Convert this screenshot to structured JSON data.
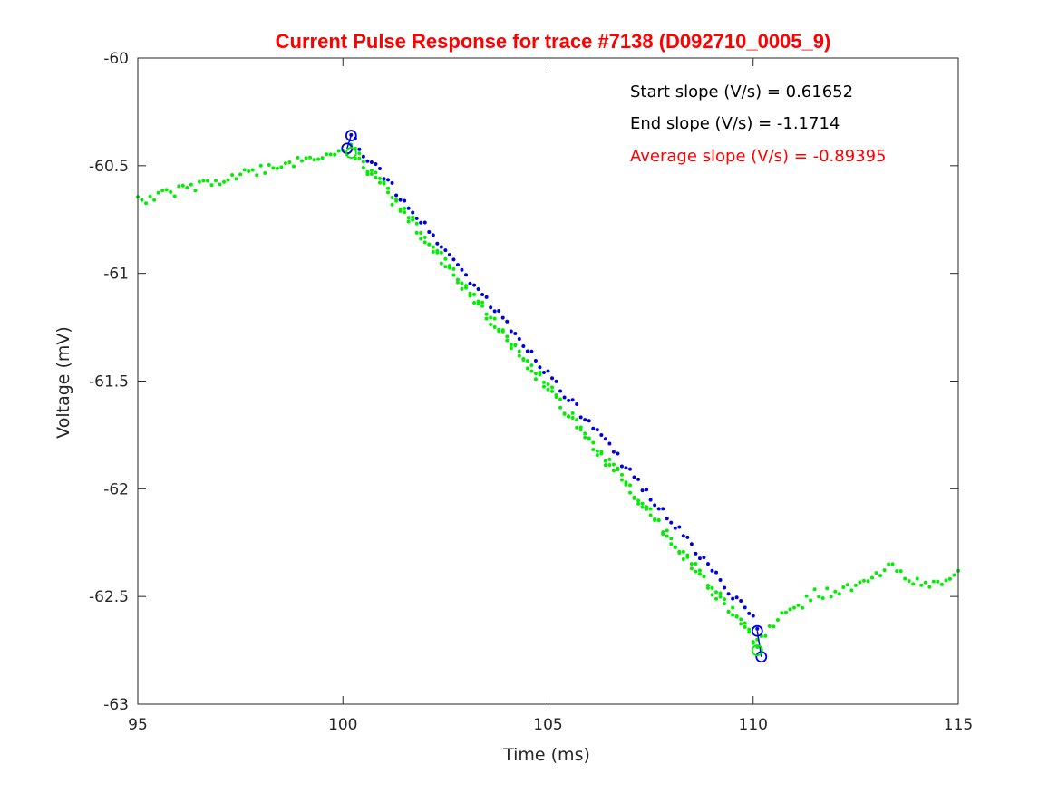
{
  "chart_data": {
    "type": "scatter",
    "title": "Current Pulse Response for trace #7138 (D092710_0005_9)",
    "xlabel": "Time (ms)",
    "ylabel": "Voltage (mV)",
    "xlim": [
      95,
      115
    ],
    "ylim": [
      -63,
      -60
    ],
    "x_ticks": [
      95,
      100,
      105,
      110,
      115
    ],
    "x_tick_labels": [
      "95",
      "100",
      "105",
      "110",
      "115"
    ],
    "y_ticks": [
      -60,
      -60.5,
      -61,
      -61.5,
      -62,
      -62.5,
      -63
    ],
    "y_tick_labels": [
      "-60",
      "-60.5",
      "-61",
      "-61.5",
      "-62",
      "-62.5",
      "-63"
    ],
    "grid": false,
    "annotations": [
      {
        "text": "Start slope (V/s) = 0.61652",
        "color": "#000000"
      },
      {
        "text": "End slope (V/s) = -1.1714",
        "color": "#000000"
      },
      {
        "text": "Average slope (V/s) = -0.89395",
        "color": "#ff0000"
      }
    ],
    "colors": {
      "trace": "#00ee00",
      "fit": "#0000dd",
      "title": "#ff0000"
    },
    "series": [
      {
        "color": "#00ee00",
        "marker": "dot",
        "segments": [
          {
            "x": [
              95,
              99.2,
              100.2,
              110.1,
              110.4,
              111.5,
              112.5,
              113.4,
              114.2,
              115
            ],
            "y": [
              -60.66,
              -60.47,
              -60.42,
              -62.72,
              -62.64,
              -62.49,
              -62.46,
              -62.36,
              -62.46,
              -62.4
            ],
            "noise": 0.025
          },
          {
            "x": [
              100.2,
              110.1
            ],
            "y": [
              -60.42,
              -62.72
            ],
            "noise": 0.03
          }
        ]
      },
      {
        "color": "#0000dd",
        "marker": "dot",
        "segments": [
          {
            "x": [
              100.2,
              110.1
            ],
            "y": [
              -60.37,
              -62.63
            ],
            "noise": 0.02
          }
        ]
      }
    ],
    "highlight_markers": [
      {
        "x": 100.2,
        "y": -60.36,
        "color": "#0000dd",
        "shape": "circle"
      },
      {
        "x": 100.1,
        "y": -60.42,
        "color": "#0000dd",
        "shape": "circle"
      },
      {
        "x": 100.2,
        "y": -60.44,
        "color": "#00ee00",
        "shape": "circle"
      },
      {
        "x": 110.1,
        "y": -62.66,
        "color": "#0000dd",
        "shape": "circle"
      },
      {
        "x": 110.2,
        "y": -62.78,
        "color": "#0000dd",
        "shape": "circle"
      },
      {
        "x": 110.1,
        "y": -62.75,
        "color": "#00ee00",
        "shape": "circle"
      }
    ],
    "highlight_lines": [
      {
        "x": [
          100.2,
          100.1
        ],
        "y": [
          -60.36,
          -60.42
        ],
        "color": "#0000dd"
      },
      {
        "x": [
          110.1,
          110.2
        ],
        "y": [
          -62.66,
          -62.78
        ],
        "color": "#0000dd"
      }
    ]
  }
}
